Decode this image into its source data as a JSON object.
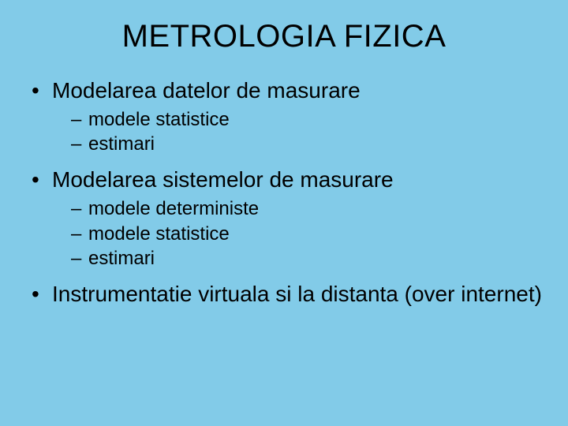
{
  "slide": {
    "background_color": "#82cbe8",
    "text_color": "#000000",
    "font_family": "Arial",
    "title": "METROLOGIA FIZICA",
    "title_fontsize": 40,
    "bullet_fontsize": 28,
    "subbullet_fontsize": 24,
    "bullets": [
      {
        "text": "Modelarea datelor de masurare",
        "sub": [
          "modele statistice",
          "estimari"
        ]
      },
      {
        "text": "Modelarea sistemelor de masurare",
        "sub": [
          "modele deterministe",
          "modele statistice",
          "estimari"
        ]
      },
      {
        "text": "Instrumentatie virtuala si la distanta (over internet)",
        "sub": []
      }
    ]
  }
}
